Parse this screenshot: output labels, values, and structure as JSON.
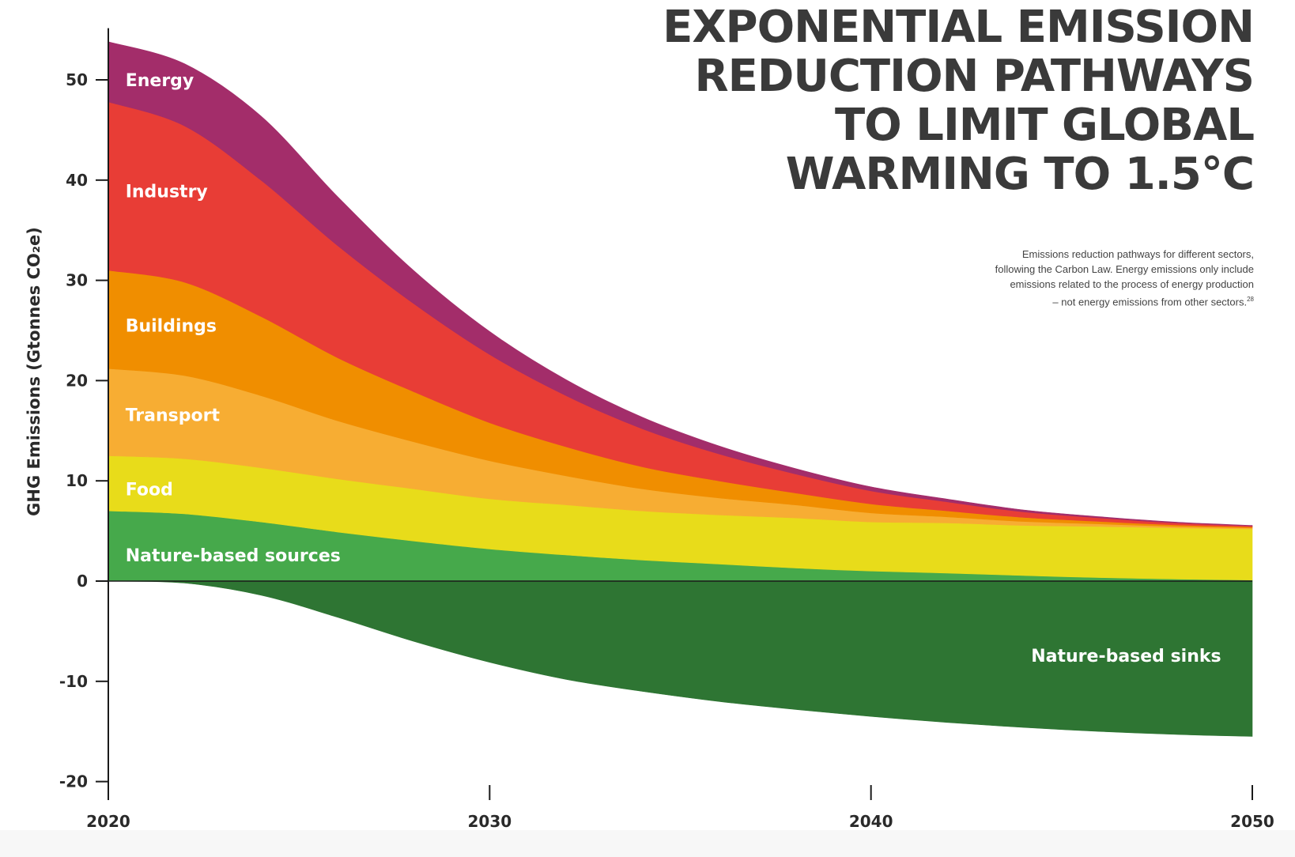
{
  "title": {
    "lines": [
      "EXPONENTIAL EMISSION",
      "REDUCTION PATHWAYS",
      "TO LIMIT GLOBAL",
      "WARMING TO 1.5°C"
    ]
  },
  "subtitle": {
    "lines": [
      "Emissions reduction pathways for different sectors,",
      "following the Carbon Law. Energy emissions only include",
      "emissions related to the process of energy production",
      "– not energy emissions from other sectors."
    ],
    "footnote": "28"
  },
  "chart_data": {
    "type": "area",
    "stacked": true,
    "title": "EXPONENTIAL EMISSION REDUCTION PATHWAYS TO LIMIT GLOBAL WARMING TO 1.5°C",
    "xlabel": "",
    "ylabel": "GHG Emissions (Gtonnes CO₂e)",
    "xlim": [
      2020,
      2050
    ],
    "ylim": [
      -20,
      55
    ],
    "xticks": [
      2020,
      2030,
      2040,
      2050
    ],
    "yticks": [
      -20,
      -10,
      0,
      10,
      20,
      30,
      40,
      50
    ],
    "grid": false,
    "legend": "inline labels",
    "x": [
      2020,
      2022,
      2024,
      2026,
      2028,
      2030,
      2032,
      2034,
      2036,
      2038,
      2040,
      2042,
      2044,
      2046,
      2048,
      2050
    ],
    "series": [
      {
        "name": "Nature-based sources",
        "color": "#46a94b",
        "label_x": 2020.45,
        "label_y": 2.6,
        "values": [
          7.0,
          6.7,
          5.9,
          4.9,
          4.0,
          3.2,
          2.6,
          2.1,
          1.7,
          1.3,
          1.0,
          0.8,
          0.55,
          0.35,
          0.2,
          0.1
        ]
      },
      {
        "name": "Food",
        "color": "#e8dc1a",
        "label_x": 2020.45,
        "label_y": 9.2,
        "values": [
          5.5,
          5.5,
          5.4,
          5.3,
          5.2,
          5.0,
          5.0,
          4.9,
          4.9,
          5.0,
          4.9,
          5.0,
          5.0,
          5.1,
          5.1,
          5.1
        ]
      },
      {
        "name": "Transport",
        "color": "#f7ad33",
        "label_x": 2020.45,
        "label_y": 16.6,
        "values": [
          8.7,
          8.3,
          7.2,
          5.8,
          4.7,
          3.8,
          2.9,
          2.2,
          1.7,
          1.3,
          0.9,
          0.6,
          0.4,
          0.25,
          0.15,
          0.1
        ]
      },
      {
        "name": "Buildings",
        "color": "#f08e00",
        "label_x": 2020.45,
        "label_y": 25.5,
        "values": [
          9.8,
          9.3,
          7.9,
          6.3,
          5.0,
          3.8,
          2.9,
          2.2,
          1.7,
          1.2,
          0.9,
          0.6,
          0.4,
          0.25,
          0.15,
          0.1
        ]
      },
      {
        "name": "Industry",
        "color": "#e83d36",
        "label_x": 2020.45,
        "label_y": 38.9,
        "values": [
          16.8,
          15.6,
          13.6,
          11.2,
          8.8,
          6.8,
          5.1,
          3.8,
          2.7,
          1.9,
          1.3,
          0.9,
          0.55,
          0.35,
          0.2,
          0.1
        ]
      },
      {
        "name": "Energy",
        "color": "#a32d6a",
        "label_x": 2020.45,
        "label_y": 50.0,
        "values": [
          6.0,
          6.2,
          6.4,
          4.9,
          3.3,
          2.3,
          1.6,
          1.15,
          0.8,
          0.55,
          0.4,
          0.28,
          0.2,
          0.12,
          0.08,
          0.05
        ]
      },
      {
        "name": "Nature-based sinks",
        "color": "#2e7533",
        "negative": true,
        "label_x": 2044.2,
        "label_y": -7.4,
        "values": [
          0.0,
          -0.2,
          -1.4,
          -3.6,
          -6.0,
          -8.1,
          -9.8,
          -11.0,
          -12.0,
          -12.8,
          -13.5,
          -14.1,
          -14.6,
          -15.0,
          -15.3,
          -15.5
        ]
      }
    ]
  }
}
